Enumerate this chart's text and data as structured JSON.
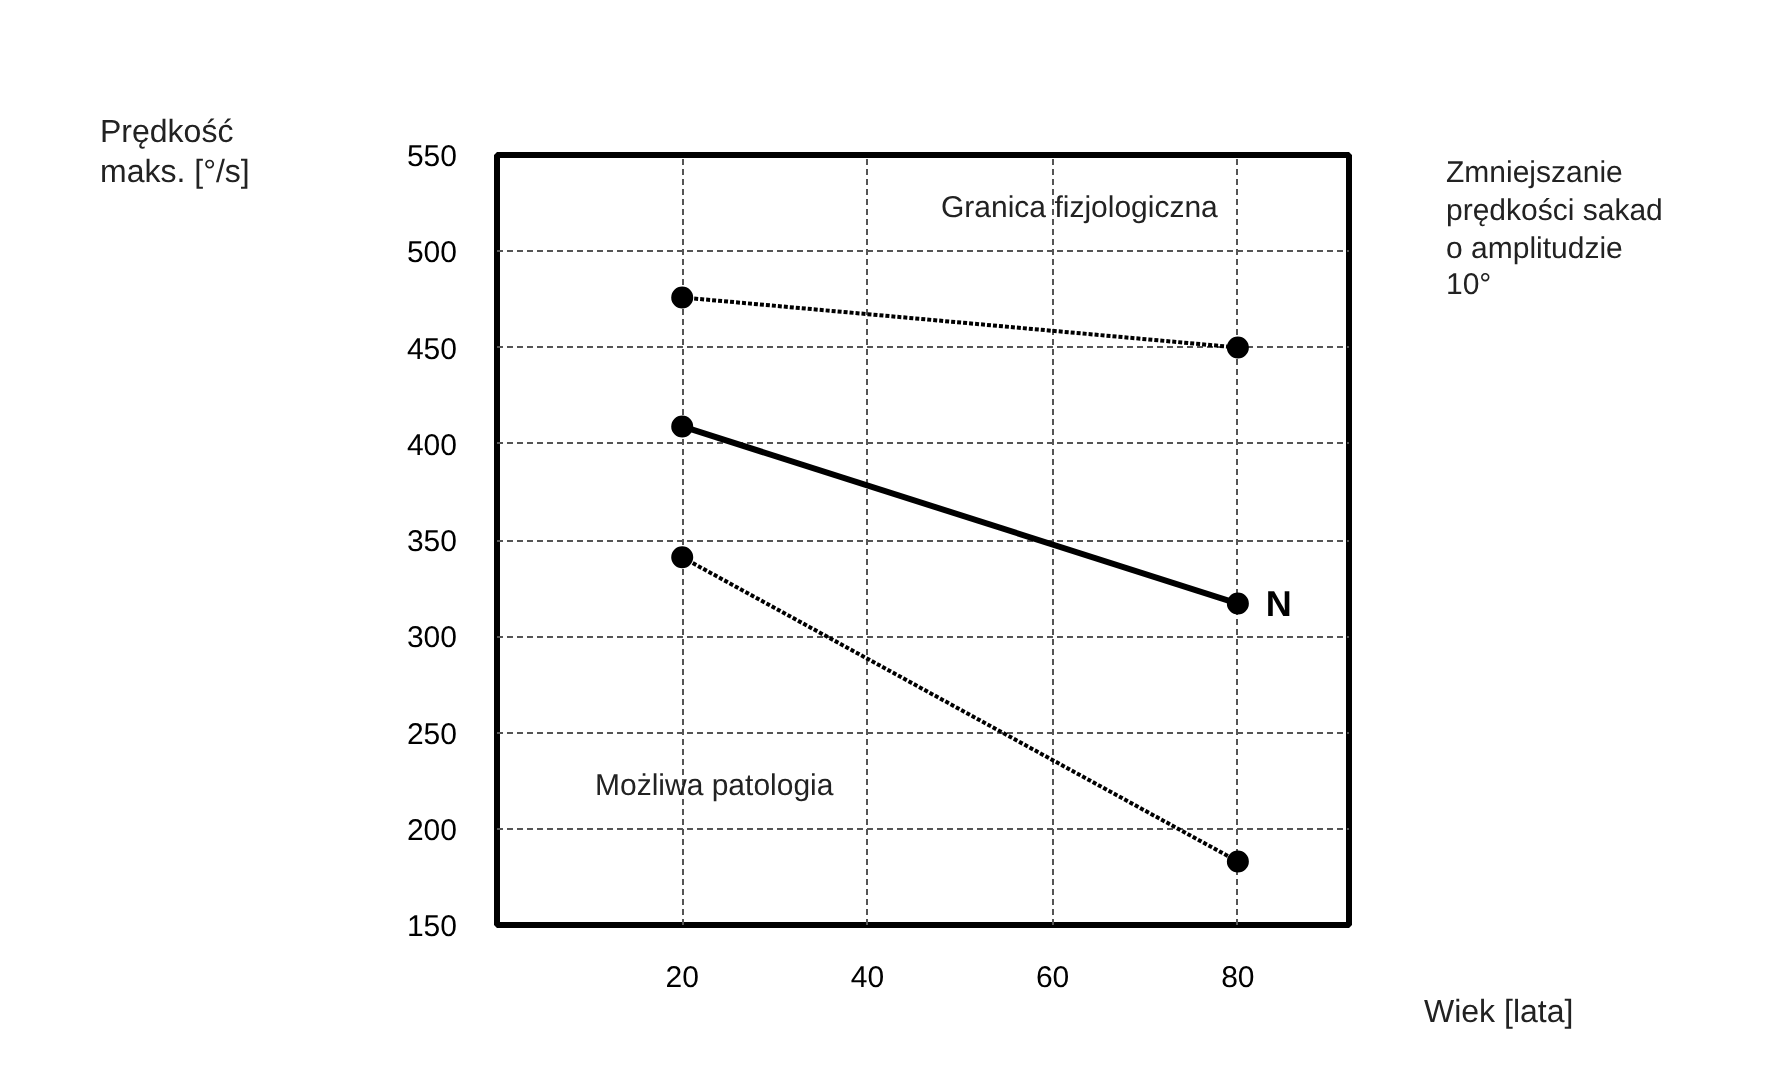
{
  "chart_data": {
    "type": "line",
    "xlabel": "Wiek [lata]",
    "ylabel": "Prędkość\nmaks. [°/s]",
    "x": [
      20,
      80
    ],
    "xlim": [
      0,
      92
    ],
    "ylim": [
      150,
      550
    ],
    "xticks": [
      20,
      40,
      60,
      80
    ],
    "yticks": [
      150,
      200,
      250,
      300,
      350,
      400,
      450,
      500,
      550
    ],
    "grid": true,
    "marker": "circle",
    "series": [
      {
        "color": "#000000",
        "values": [
          476,
          450
        ],
        "line_style": "dotted"
      },
      {
        "name": "N",
        "color": "#000000",
        "values": [
          409,
          317
        ],
        "line_style": "solid"
      },
      {
        "color": "#000000",
        "values": [
          341,
          183
        ],
        "line_style": "dotted"
      }
    ],
    "annotations": [
      "Granica fizjologiczna",
      "Możliwa patologia",
      "Zmniejszanie\nprędkości sakad\no amplitudzie\n      10°"
    ]
  }
}
